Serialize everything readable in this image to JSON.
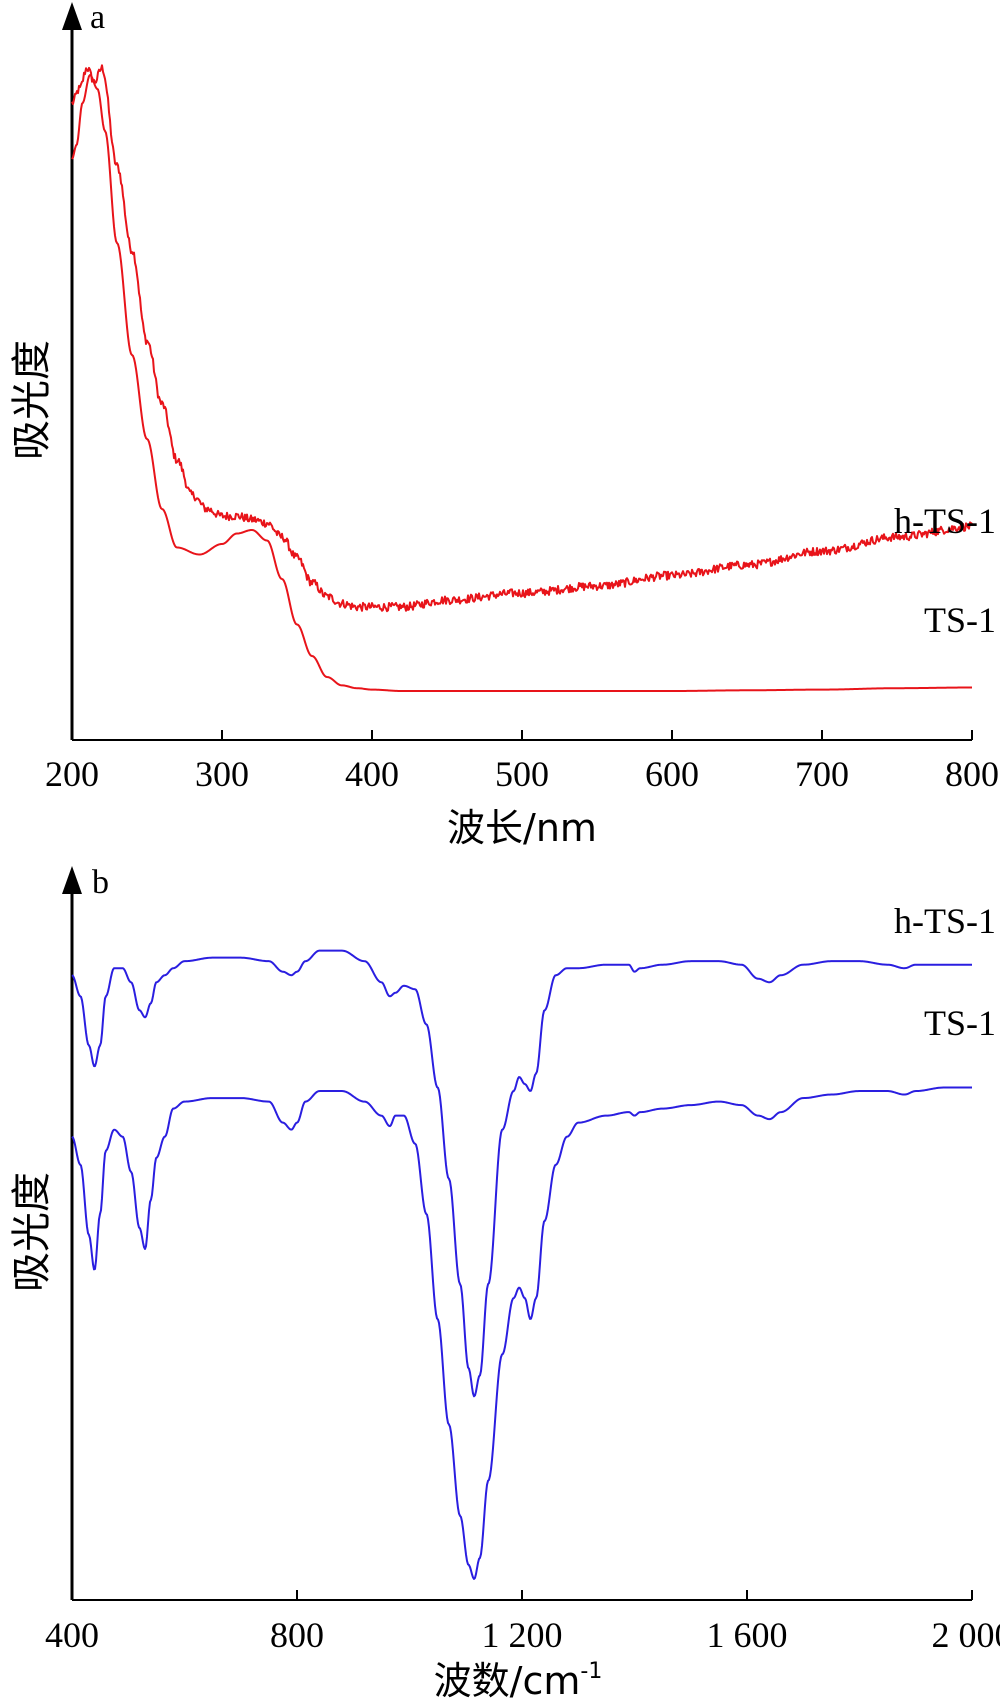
{
  "chart_data": [
    {
      "type": "line",
      "panel_label": "a",
      "xlabel": "波长/nm",
      "ylabel": "吸光度",
      "xlim": [
        200,
        800
      ],
      "ylim": [
        0,
        1
      ],
      "xticks": [
        200,
        300,
        400,
        500,
        600,
        700,
        800
      ],
      "xtick_labels": [
        "200",
        "300",
        "400",
        "500",
        "600",
        "700",
        "800"
      ],
      "grid": false,
      "line_color": "#e8141a",
      "series": [
        {
          "name": "h-TS-1",
          "label_value": "h-TS-1",
          "noise": 0.006,
          "x": [
            200,
            205,
            210,
            215,
            220,
            230,
            240,
            250,
            260,
            270,
            280,
            290,
            300,
            310,
            320,
            330,
            340,
            350,
            360,
            370,
            380,
            390,
            400,
            420,
            450,
            500,
            550,
            600,
            650,
            700,
            750,
            800
          ],
          "y": [
            0.91,
            0.93,
            0.96,
            0.94,
            0.96,
            0.82,
            0.7,
            0.57,
            0.48,
            0.4,
            0.35,
            0.33,
            0.32,
            0.32,
            0.315,
            0.31,
            0.29,
            0.26,
            0.225,
            0.205,
            0.195,
            0.19,
            0.19,
            0.19,
            0.2,
            0.21,
            0.22,
            0.235,
            0.25,
            0.27,
            0.29,
            0.305
          ]
        },
        {
          "name": "TS-1",
          "label_value": "TS-1",
          "noise": 0.0,
          "x": [
            200,
            203,
            207,
            212,
            217,
            222,
            230,
            240,
            250,
            260,
            270,
            285,
            300,
            310,
            320,
            330,
            340,
            350,
            360,
            370,
            380,
            390,
            400,
            420,
            450,
            500,
            550,
            600,
            650,
            700,
            750,
            800
          ],
          "y": [
            0.83,
            0.85,
            0.91,
            0.95,
            0.93,
            0.87,
            0.71,
            0.55,
            0.43,
            0.33,
            0.275,
            0.265,
            0.28,
            0.295,
            0.3,
            0.285,
            0.23,
            0.165,
            0.12,
            0.09,
            0.078,
            0.074,
            0.072,
            0.07,
            0.07,
            0.07,
            0.07,
            0.07,
            0.071,
            0.072,
            0.074,
            0.075
          ]
        }
      ]
    },
    {
      "type": "line",
      "panel_label": "b",
      "xlabel": "波数/cm",
      "xlabel_superscript": "-1",
      "ylabel": "吸光度",
      "xlim": [
        400,
        2000
      ],
      "ylim": [
        0,
        1
      ],
      "xticks": [
        400,
        800,
        1200,
        1600,
        2000
      ],
      "xtick_labels": [
        "400",
        "800",
        "1 200",
        "1 600",
        "2 000"
      ],
      "grid": false,
      "line_color": "#2a1ee0",
      "series": [
        {
          "name": "h-TS-1",
          "label_value": "h-TS-1",
          "x": [
            400,
            415,
            430,
            440,
            450,
            460,
            475,
            490,
            505,
            520,
            530,
            540,
            550,
            565,
            580,
            600,
            650,
            700,
            750,
            775,
            790,
            800,
            815,
            840,
            880,
            920,
            950,
            965,
            975,
            990,
            1010,
            1030,
            1050,
            1070,
            1090,
            1105,
            1115,
            1125,
            1140,
            1165,
            1185,
            1195,
            1205,
            1215,
            1225,
            1240,
            1260,
            1280,
            1300,
            1350,
            1390,
            1400,
            1410,
            1450,
            1500,
            1550,
            1590,
            1620,
            1640,
            1660,
            1700,
            1750,
            1800,
            1850,
            1880,
            1900,
            1950,
            2000
          ],
          "y": [
            0.89,
            0.86,
            0.79,
            0.76,
            0.79,
            0.86,
            0.9,
            0.9,
            0.88,
            0.84,
            0.83,
            0.85,
            0.88,
            0.89,
            0.9,
            0.91,
            0.915,
            0.915,
            0.91,
            0.895,
            0.89,
            0.895,
            0.91,
            0.925,
            0.925,
            0.91,
            0.88,
            0.86,
            0.865,
            0.875,
            0.87,
            0.82,
            0.73,
            0.6,
            0.45,
            0.33,
            0.29,
            0.32,
            0.45,
            0.67,
            0.725,
            0.745,
            0.735,
            0.725,
            0.75,
            0.84,
            0.89,
            0.9,
            0.9,
            0.905,
            0.905,
            0.895,
            0.9,
            0.905,
            0.91,
            0.91,
            0.905,
            0.885,
            0.88,
            0.89,
            0.905,
            0.91,
            0.91,
            0.905,
            0.9,
            0.905,
            0.905,
            0.905
          ]
        },
        {
          "name": "TS-1",
          "label_value": "TS-1",
          "x": [
            400,
            415,
            430,
            440,
            450,
            460,
            475,
            490,
            505,
            520,
            530,
            540,
            550,
            565,
            580,
            600,
            650,
            700,
            750,
            775,
            790,
            800,
            815,
            840,
            880,
            920,
            950,
            965,
            975,
            990,
            1010,
            1030,
            1050,
            1070,
            1090,
            1105,
            1115,
            1125,
            1140,
            1165,
            1185,
            1195,
            1205,
            1215,
            1225,
            1240,
            1260,
            1280,
            1300,
            1350,
            1390,
            1400,
            1410,
            1450,
            1500,
            1550,
            1590,
            1620,
            1640,
            1660,
            1700,
            1750,
            1800,
            1850,
            1880,
            1900,
            1950,
            2000
          ],
          "y": [
            0.66,
            0.62,
            0.52,
            0.47,
            0.55,
            0.64,
            0.67,
            0.66,
            0.61,
            0.53,
            0.5,
            0.57,
            0.63,
            0.66,
            0.7,
            0.71,
            0.715,
            0.715,
            0.71,
            0.68,
            0.67,
            0.68,
            0.71,
            0.725,
            0.725,
            0.71,
            0.69,
            0.675,
            0.69,
            0.69,
            0.65,
            0.55,
            0.4,
            0.25,
            0.12,
            0.05,
            0.03,
            0.06,
            0.17,
            0.35,
            0.43,
            0.445,
            0.43,
            0.4,
            0.43,
            0.54,
            0.62,
            0.66,
            0.68,
            0.69,
            0.695,
            0.69,
            0.695,
            0.7,
            0.705,
            0.71,
            0.705,
            0.69,
            0.685,
            0.695,
            0.715,
            0.72,
            0.725,
            0.725,
            0.72,
            0.725,
            0.73,
            0.73
          ]
        }
      ]
    }
  ]
}
